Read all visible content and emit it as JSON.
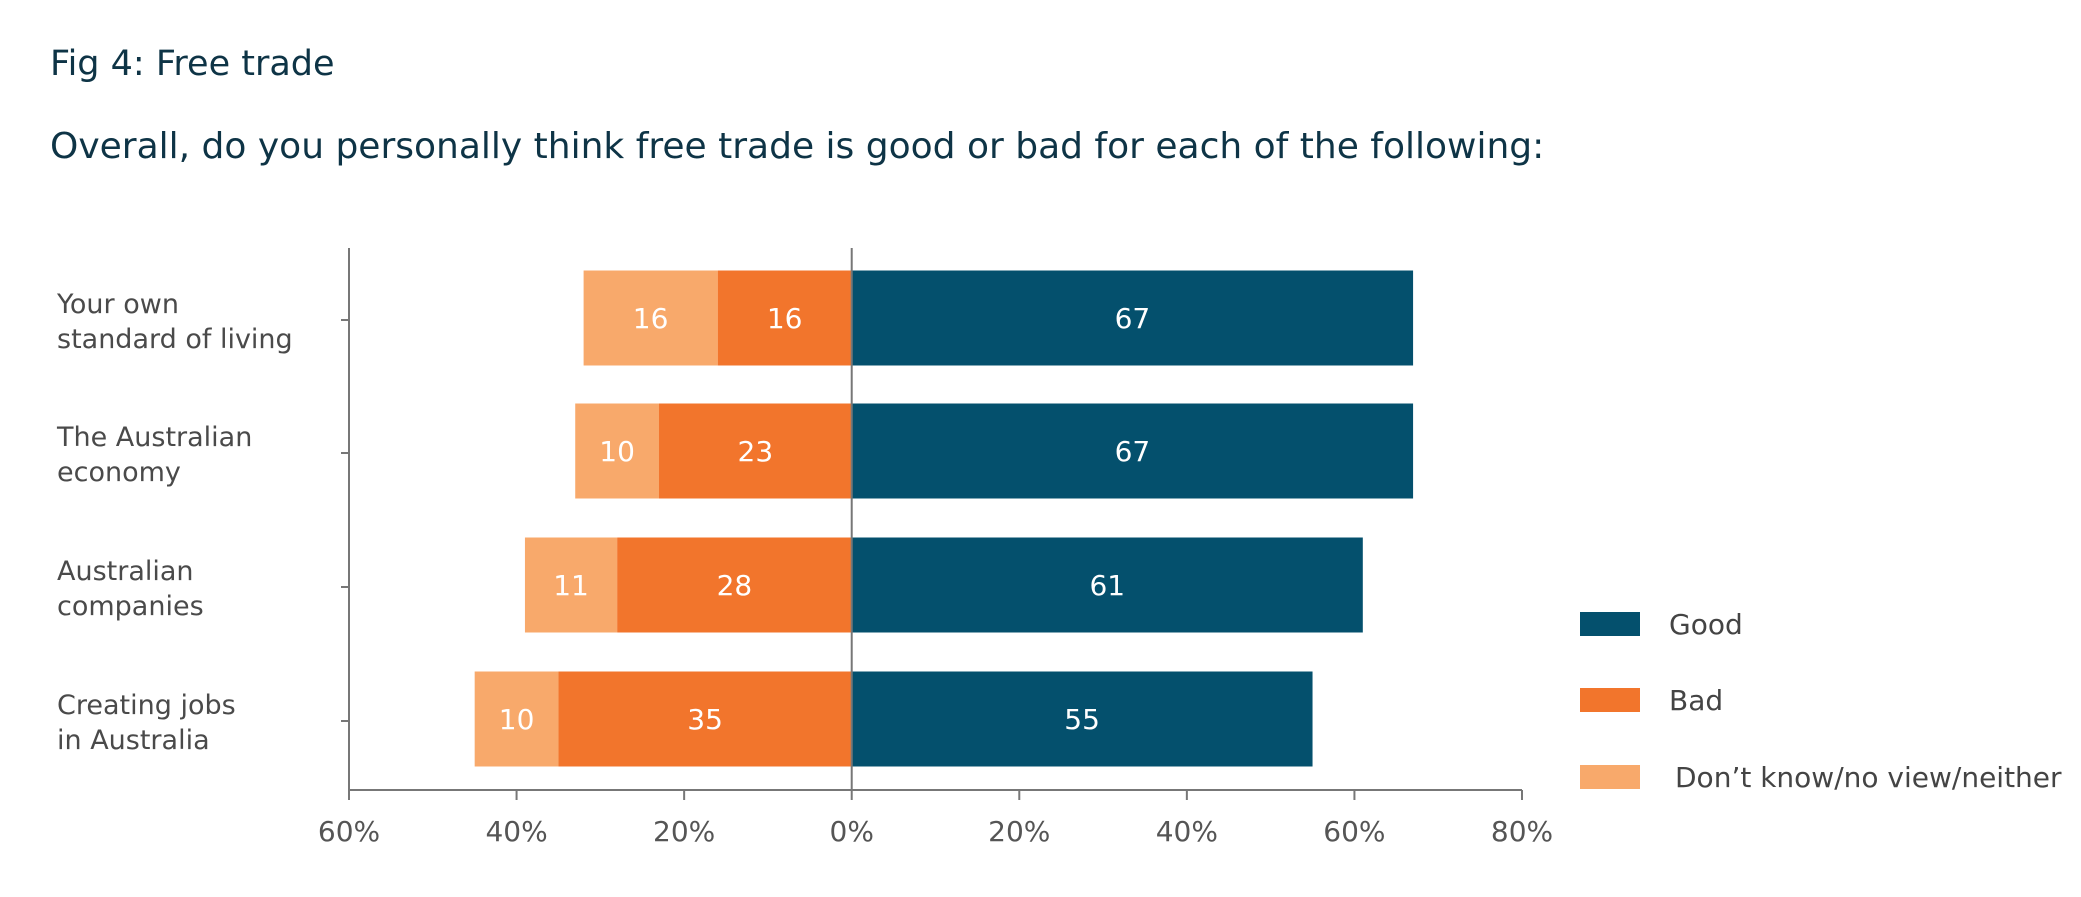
{
  "title": "Fig 4: Free trade",
  "subtitle": "Overall, do you personally think free trade is good or bad for each of the following:",
  "colors": {
    "good": "#04506d",
    "bad": "#f2752c",
    "dontknow": "#f8a96b",
    "axis": "#777777"
  },
  "chart_data": {
    "type": "bar",
    "orientation": "horizontal-diverging",
    "categories": [
      [
        "Your own",
        "standard of living"
      ],
      [
        "The Australian",
        "economy"
      ],
      [
        "Australian",
        "companies"
      ],
      [
        "Creating jobs",
        "in Australia"
      ]
    ],
    "series": [
      {
        "name": "Good",
        "direction": "right",
        "values": [
          67,
          67,
          61,
          55
        ]
      },
      {
        "name": "Bad",
        "direction": "left",
        "values": [
          16,
          23,
          28,
          35
        ]
      },
      {
        "name": "Don’t know/no view/neither",
        "direction": "left",
        "values": [
          16,
          10,
          11,
          10
        ]
      }
    ],
    "x_ticks": [
      -60,
      -40,
      -20,
      0,
      20,
      40,
      60,
      80
    ],
    "x_tick_labels": [
      "60%",
      "40%",
      "20%",
      "0%",
      "20%",
      "40%",
      "60%",
      "80%"
    ],
    "xlim": [
      -60,
      80
    ],
    "legend_position": "right",
    "grid": false
  }
}
